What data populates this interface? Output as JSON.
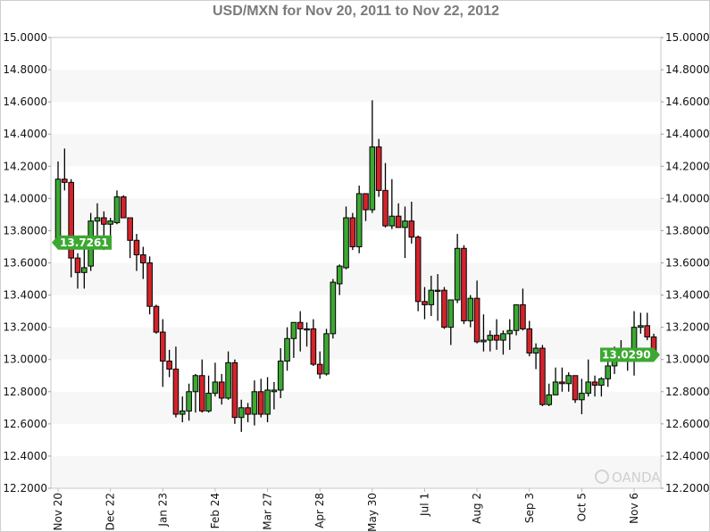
{
  "chart_data": {
    "type": "candlestick",
    "title": "USD/MXN for Nov 20, 2011 to Nov 22, 2012",
    "ylim": [
      12.2,
      15.0
    ],
    "y_ticks": [
      "15.0000",
      "14.8000",
      "14.6000",
      "14.4000",
      "14.2000",
      "14.0000",
      "13.8000",
      "13.6000",
      "13.4000",
      "13.2000",
      "13.0000",
      "12.8000",
      "12.6000",
      "12.4000",
      "12.2000"
    ],
    "x_ticks": [
      "Nov 20",
      "Dec 22",
      "Jan 23",
      "Feb 24",
      "Mar 27",
      "Apr 28",
      "May 30",
      "Jul 1",
      "Aug 2",
      "Sep 3",
      "Oct 5",
      "Nov 6"
    ],
    "grid": "alternating horizontal bands",
    "colors": {
      "up": "#3ca832",
      "down": "#d3232b",
      "tag": "#3ca832",
      "band": "#f7f7f7"
    },
    "open_tag": "13.7261",
    "last_tag": "13.0290",
    "watermark": "OANDA",
    "candles_ohlc": [
      [
        13.7261,
        14.23,
        13.71,
        14.12
      ],
      [
        14.12,
        14.31,
        14.05,
        14.1
      ],
      [
        14.1,
        14.12,
        13.51,
        13.63
      ],
      [
        13.63,
        13.66,
        13.44,
        13.54
      ],
      [
        13.54,
        13.77,
        13.44,
        13.57
      ],
      [
        13.58,
        13.91,
        13.55,
        13.86
      ],
      [
        13.86,
        13.97,
        13.75,
        13.88
      ],
      [
        13.88,
        13.92,
        13.68,
        13.84
      ],
      [
        13.84,
        13.88,
        13.77,
        13.86
      ],
      [
        13.85,
        14.05,
        13.84,
        14.01
      ],
      [
        14.01,
        14.02,
        13.88,
        13.88
      ],
      [
        13.88,
        13.88,
        13.63,
        13.74
      ],
      [
        13.74,
        13.78,
        13.55,
        13.65
      ],
      [
        13.65,
        13.7,
        13.5,
        13.6
      ],
      [
        13.6,
        13.64,
        13.28,
        13.33
      ],
      [
        13.33,
        13.34,
        13.16,
        13.17
      ],
      [
        13.17,
        13.25,
        12.83,
        12.99
      ],
      [
        12.99,
        13.06,
        12.89,
        12.94
      ],
      [
        12.94,
        13.08,
        12.64,
        12.66
      ],
      [
        12.66,
        12.77,
        12.61,
        12.68
      ],
      [
        12.68,
        12.85,
        12.62,
        12.8
      ],
      [
        12.8,
        12.91,
        12.67,
        12.9
      ],
      [
        12.9,
        13.0,
        12.67,
        12.68
      ],
      [
        12.68,
        12.9,
        12.67,
        12.79
      ],
      [
        12.79,
        12.98,
        12.77,
        12.86
      ],
      [
        12.86,
        12.91,
        12.72,
        12.76
      ],
      [
        12.76,
        13.05,
        12.75,
        12.98
      ],
      [
        12.98,
        13.0,
        12.6,
        12.64
      ],
      [
        12.64,
        12.75,
        12.55,
        12.7
      ],
      [
        12.7,
        12.73,
        12.61,
        12.66
      ],
      [
        12.66,
        12.87,
        12.59,
        12.8
      ],
      [
        12.8,
        12.88,
        12.64,
        12.66
      ],
      [
        12.66,
        12.89,
        12.61,
        12.81
      ],
      [
        12.8,
        12.86,
        12.69,
        12.81
      ],
      [
        12.81,
        13.07,
        12.76,
        12.99
      ],
      [
        12.99,
        13.2,
        12.93,
        13.13
      ],
      [
        13.13,
        13.23,
        13.01,
        13.23
      ],
      [
        13.23,
        13.3,
        13.05,
        13.19
      ],
      [
        13.19,
        13.23,
        13.08,
        13.19
      ],
      [
        13.19,
        13.25,
        12.96,
        12.97
      ],
      [
        12.97,
        13.05,
        12.88,
        12.91
      ],
      [
        12.91,
        13.19,
        12.9,
        13.16
      ],
      [
        13.16,
        13.5,
        13.13,
        13.48
      ],
      [
        13.47,
        13.59,
        13.4,
        13.58
      ],
      [
        13.57,
        13.95,
        13.56,
        13.88
      ],
      [
        13.88,
        13.91,
        13.68,
        13.7
      ],
      [
        13.7,
        14.08,
        13.66,
        14.03
      ],
      [
        14.03,
        14.03,
        13.86,
        13.93
      ],
      [
        13.93,
        14.61,
        13.91,
        14.32
      ],
      [
        14.32,
        14.37,
        14.01,
        14.05
      ],
      [
        14.05,
        14.22,
        13.82,
        13.83
      ],
      [
        13.83,
        14.12,
        13.81,
        13.89
      ],
      [
        13.89,
        13.97,
        13.82,
        13.82
      ],
      [
        13.82,
        13.95,
        13.63,
        13.86
      ],
      [
        13.86,
        13.98,
        13.72,
        13.76
      ],
      [
        13.76,
        13.77,
        13.3,
        13.36
      ],
      [
        13.36,
        13.45,
        13.25,
        13.34
      ],
      [
        13.34,
        13.52,
        13.27,
        13.43
      ],
      [
        13.43,
        13.53,
        13.24,
        13.43
      ],
      [
        13.43,
        13.45,
        13.19,
        13.2
      ],
      [
        13.2,
        13.37,
        13.09,
        13.37
      ],
      [
        13.37,
        13.78,
        13.35,
        13.69
      ],
      [
        13.69,
        13.71,
        13.22,
        13.24
      ],
      [
        13.24,
        13.4,
        13.2,
        13.38
      ],
      [
        13.38,
        13.49,
        13.1,
        13.11
      ],
      [
        13.11,
        13.28,
        13.05,
        13.12
      ],
      [
        13.12,
        13.18,
        13.05,
        13.15
      ],
      [
        13.15,
        13.25,
        13.06,
        13.12
      ],
      [
        13.12,
        13.18,
        13.03,
        13.16
      ],
      [
        13.16,
        13.25,
        13.06,
        13.18
      ],
      [
        13.18,
        13.34,
        13.15,
        13.34
      ],
      [
        13.34,
        13.44,
        13.18,
        13.19
      ],
      [
        13.19,
        13.24,
        13.02,
        13.04
      ],
      [
        13.04,
        13.1,
        12.94,
        13.07
      ],
      [
        13.07,
        13.09,
        12.71,
        12.72
      ],
      [
        12.72,
        12.85,
        12.71,
        12.78
      ],
      [
        12.78,
        12.95,
        12.78,
        12.86
      ],
      [
        12.86,
        12.95,
        12.8,
        12.85
      ],
      [
        12.85,
        12.92,
        12.8,
        12.9
      ],
      [
        12.9,
        12.9,
        12.73,
        12.75
      ],
      [
        12.75,
        12.88,
        12.66,
        12.79
      ],
      [
        12.79,
        13.0,
        12.77,
        12.86
      ],
      [
        12.86,
        12.9,
        12.77,
        12.84
      ],
      [
        12.84,
        12.89,
        12.77,
        12.88
      ],
      [
        12.88,
        13.05,
        12.83,
        12.96
      ],
      [
        12.96,
        13.08,
        12.91,
        13.01
      ],
      [
        13.01,
        13.12,
        12.99,
        13.02
      ],
      [
        13.02,
        13.07,
        12.93,
        13.03
      ],
      [
        13.03,
        13.3,
        12.9,
        13.2
      ],
      [
        13.2,
        13.29,
        13.16,
        13.21
      ],
      [
        13.21,
        13.29,
        13.12,
        13.14
      ],
      [
        13.14,
        13.16,
        12.99,
        13.029
      ]
    ]
  }
}
